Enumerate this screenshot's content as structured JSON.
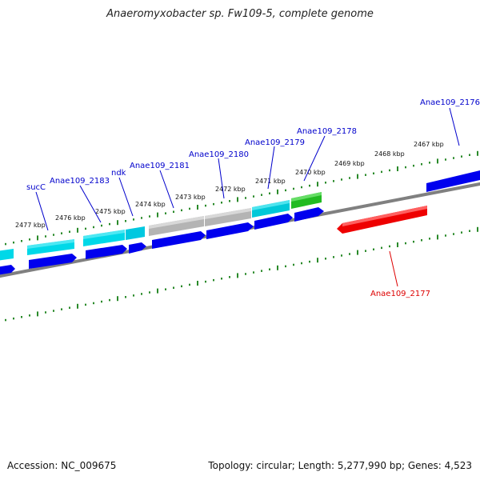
{
  "title": "Anaeromyxobacter sp. Fw109-5, complete genome",
  "footer": {
    "accession": "Accession: NC_009675",
    "summary": "Topology: circular; Length: 5,277,990 bp; Genes: 4,523"
  },
  "scale_labels": [
    "2477 kbp",
    "2476 kbp",
    "2475 kbp",
    "2474 kbp",
    "2473 kbp",
    "2472 kbp",
    "2471 kbp",
    "2470 kbp",
    "2469 kbp",
    "2468 kbp",
    "2467 kbp"
  ],
  "gene_labels": [
    {
      "text": "sucC",
      "color": "#0000cc"
    },
    {
      "text": "Anae109_2183",
      "color": "#0000cc"
    },
    {
      "text": "ndk",
      "color": "#0000cc"
    },
    {
      "text": "Anae109_2181",
      "color": "#0000cc"
    },
    {
      "text": "Anae109_2180",
      "color": "#0000cc"
    },
    {
      "text": "Anae109_2179",
      "color": "#0000cc"
    },
    {
      "text": "Anae109_2178",
      "color": "#0000cc"
    },
    {
      "text": "Anae109_2176",
      "color": "#0000cc"
    },
    {
      "text": "Anae109_2177",
      "color": "#dd0000"
    }
  ],
  "colors": {
    "tick": "#2a8a2a",
    "backbone": "#888888",
    "cds": "#0000ee",
    "cyan": "#00d8e8",
    "gray": "#b0b0b0",
    "green": "#22bb22",
    "red": "#ee0000"
  }
}
